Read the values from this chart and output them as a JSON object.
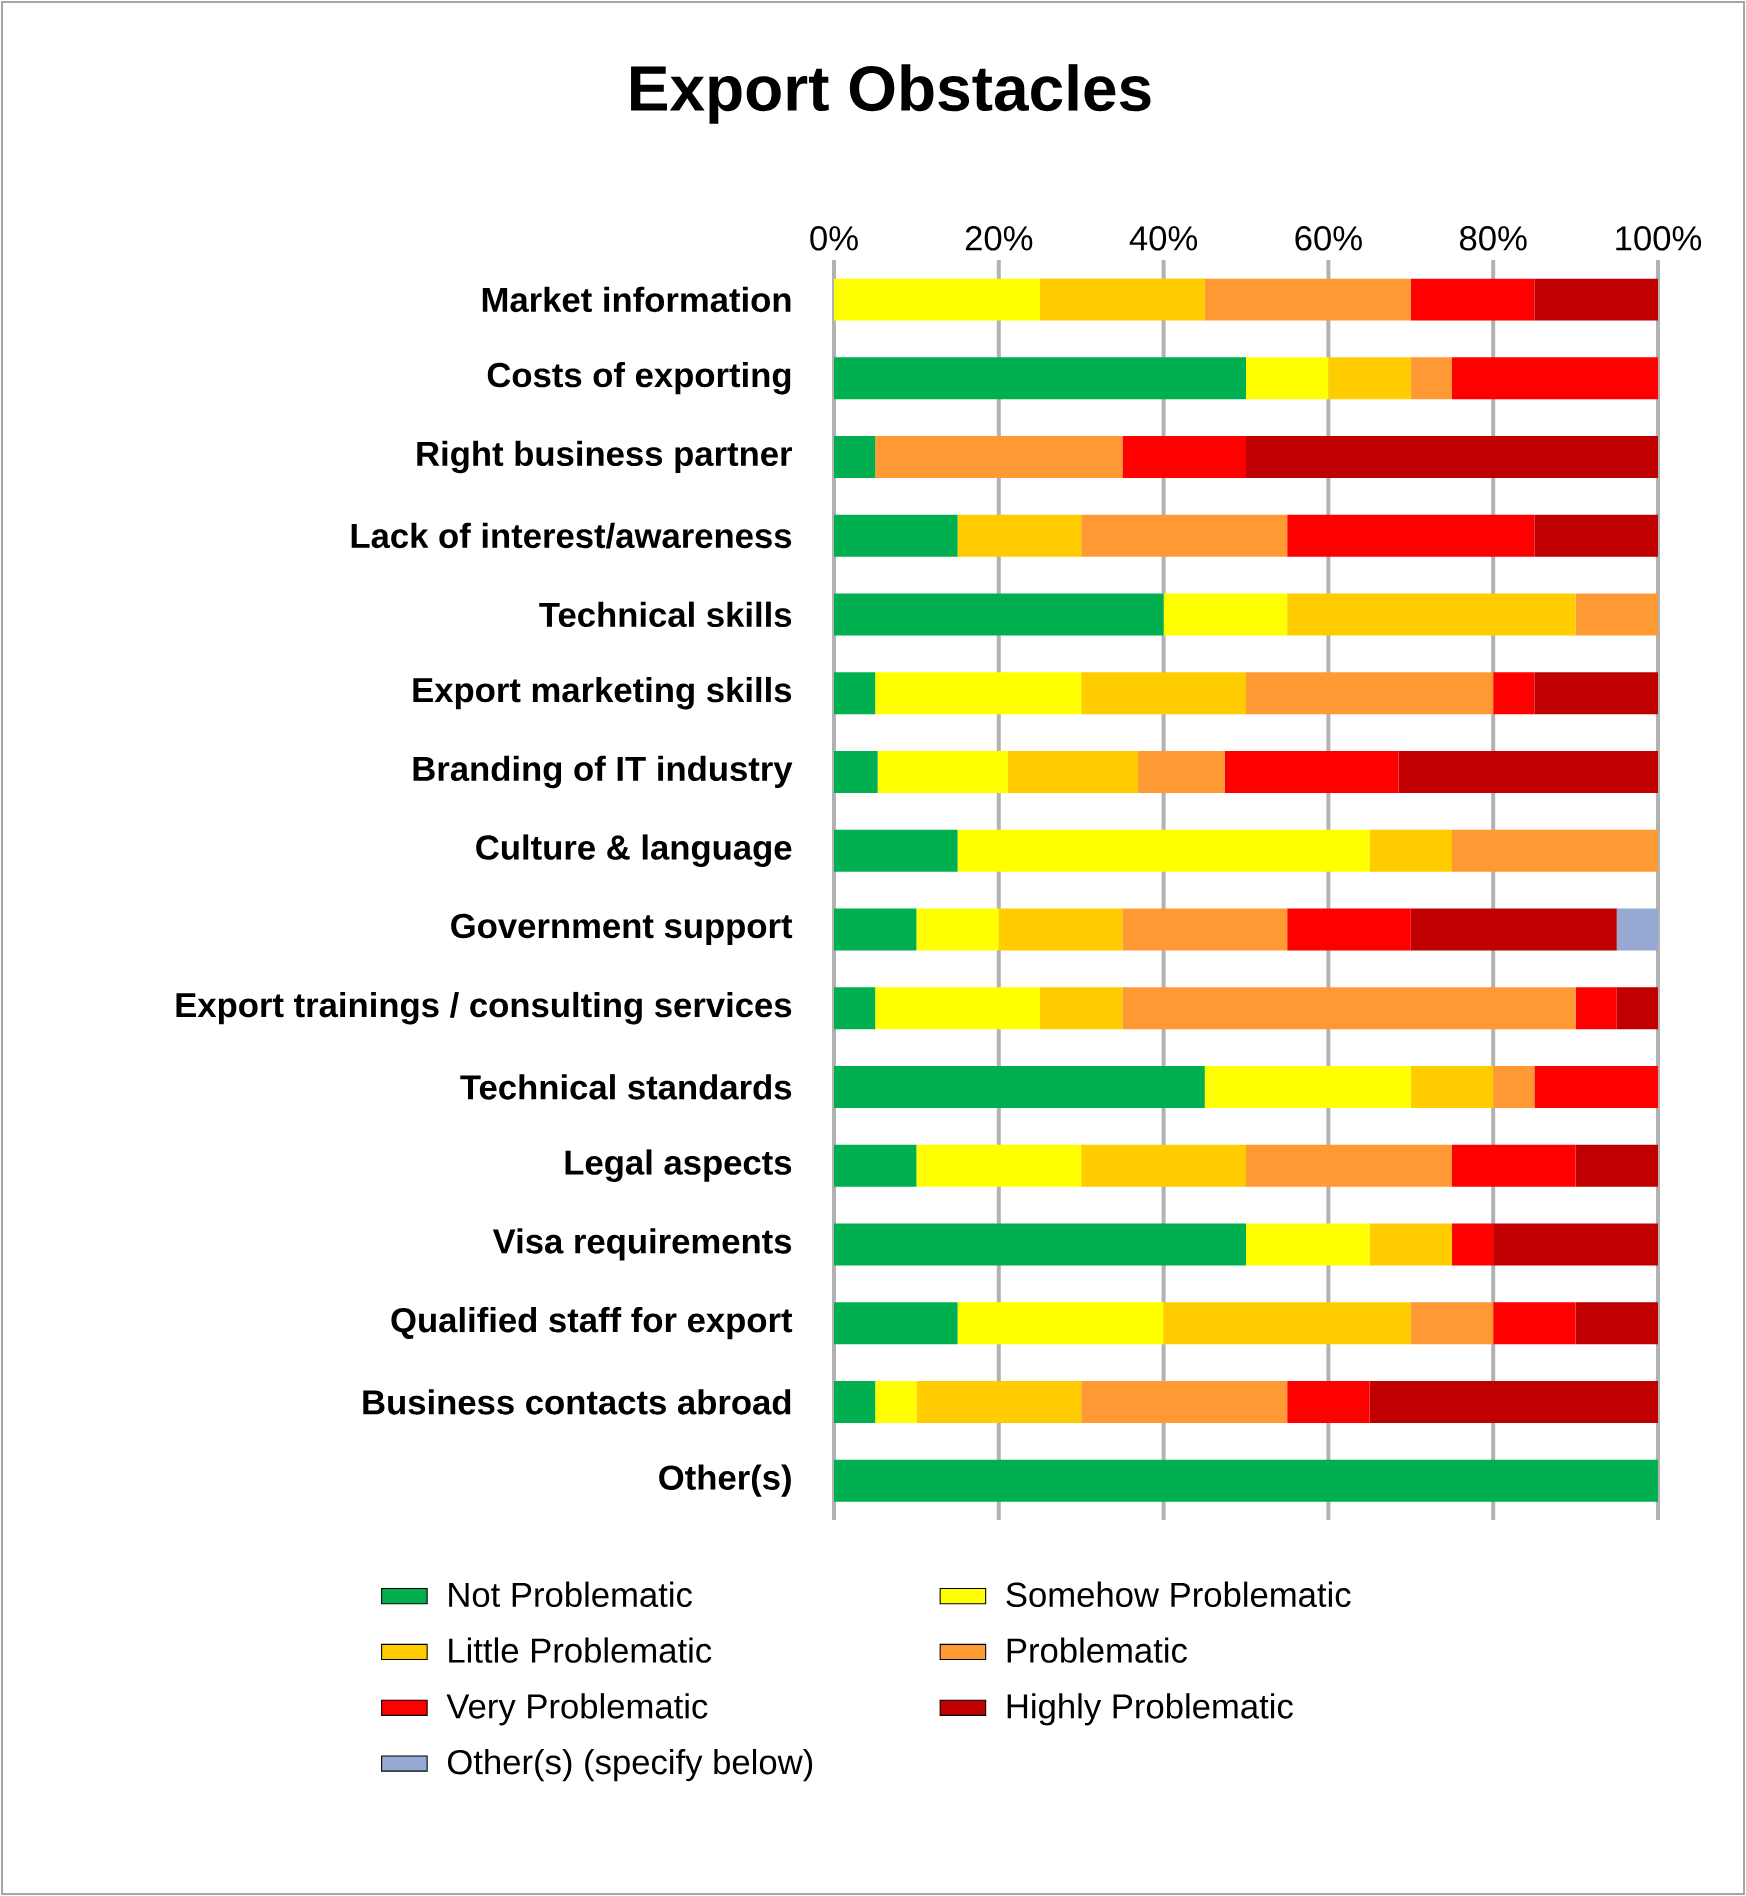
{
  "chart_data": {
    "type": "bar",
    "orientation": "horizontal",
    "stacked": true,
    "title": "Export Obstacles",
    "categories": [
      "Market information",
      "Costs of exporting",
      "Right business partner",
      "Lack of interest/awareness",
      "Technical skills",
      "Export marketing skills",
      "Branding of IT industry",
      "Culture & language",
      "Government support",
      "Export trainings / consulting services",
      "Technical standards",
      "Legal aspects",
      "Visa requirements",
      "Qualified staff for export",
      "Business contacts abroad",
      "Other(s)"
    ],
    "xlim": [
      0,
      100
    ],
    "xticks": [
      {
        "value": 0,
        "label": "0%"
      },
      {
        "value": 20,
        "label": "20%"
      },
      {
        "value": 40,
        "label": "40%"
      },
      {
        "value": 60,
        "label": "60%"
      },
      {
        "value": 80,
        "label": "80%"
      },
      {
        "value": 100,
        "label": "100%"
      }
    ],
    "grid": "x",
    "legend": "bottom",
    "series": [
      {
        "name": "Not Problematic",
        "color": "#00b050",
        "values": [
          0,
          50,
          5,
          15,
          40,
          5,
          5.3,
          15,
          10,
          5,
          45,
          10,
          50,
          15,
          5,
          100
        ]
      },
      {
        "name": "Somehow Problematic",
        "color": "#ffff00",
        "values": [
          25,
          10,
          0,
          0,
          15,
          25,
          15.8,
          50,
          10,
          20,
          25,
          20,
          15,
          25,
          5,
          0
        ]
      },
      {
        "name": "Little Problematic",
        "color": "#ffcc00",
        "values": [
          20,
          10,
          0,
          15,
          35,
          20,
          15.8,
          10,
          15,
          10,
          10,
          20,
          10,
          30,
          20,
          0
        ]
      },
      {
        "name": "Problematic",
        "color": "#ff9933",
        "values": [
          25,
          5,
          30,
          25,
          10,
          30,
          10.5,
          25,
          20,
          55,
          5,
          25,
          0,
          10,
          25,
          0
        ]
      },
      {
        "name": "Very Problematic",
        "color": "#ff0000",
        "values": [
          15,
          25,
          15,
          30,
          0,
          5,
          21.1,
          0,
          15,
          5,
          15,
          15,
          5,
          10,
          10,
          0
        ]
      },
      {
        "name": "Highly Problematic",
        "color": "#c00000",
        "values": [
          15,
          0,
          50,
          15,
          0,
          15,
          31.5,
          0,
          25,
          5,
          0,
          10,
          20,
          10,
          35,
          0
        ]
      },
      {
        "name": "Other(s) (specify below)",
        "color": "#95a9d3",
        "values": [
          0,
          0,
          0,
          0,
          0,
          0,
          0,
          0,
          5,
          0,
          0,
          0,
          0,
          0,
          0,
          0
        ]
      }
    ]
  }
}
